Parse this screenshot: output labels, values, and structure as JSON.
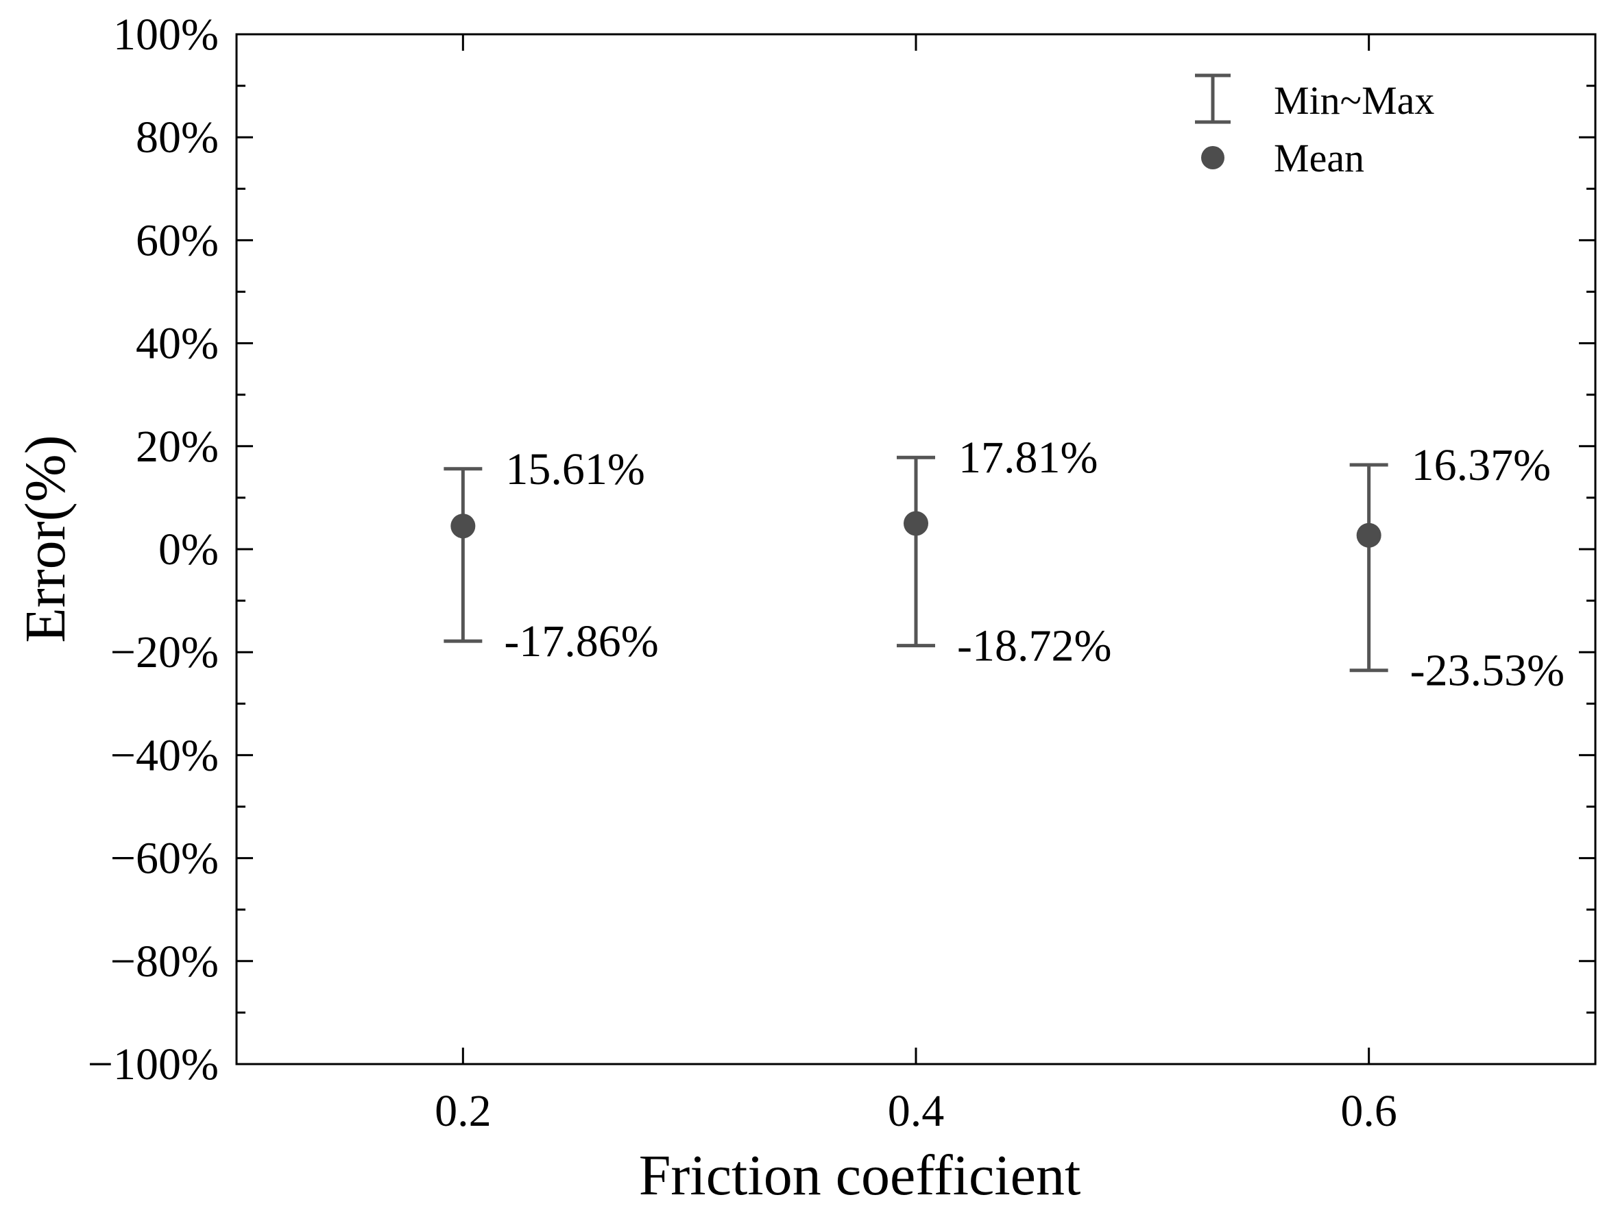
{
  "chart_data": {
    "type": "scatter",
    "title": "",
    "xlabel": "Friction coefficient",
    "ylabel": "Error(%)",
    "x": [
      0.2,
      0.4,
      0.6
    ],
    "x_tick_labels": [
      "0.2",
      "0.4",
      "0.6"
    ],
    "xlim": [
      0.1,
      0.7
    ],
    "ylim": [
      -100,
      100
    ],
    "y_ticks": [
      100,
      80,
      60,
      40,
      20,
      0,
      -20,
      -40,
      -60,
      -80,
      -100
    ],
    "y_tick_labels": [
      "100%",
      "80%",
      "60%",
      "40%",
      "20%",
      "0%",
      "−20%",
      "−40%",
      "−60%",
      "−80%",
      "−100%"
    ],
    "series": [
      {
        "name": "Mean",
        "values": [
          4.5,
          5.0,
          2.7
        ]
      },
      {
        "name": "Max",
        "values": [
          15.61,
          17.81,
          16.37
        ]
      },
      {
        "name": "Min",
        "values": [
          -17.86,
          -18.72,
          -23.53
        ]
      }
    ],
    "max_labels": [
      "15.61%",
      "17.81%",
      "16.37%"
    ],
    "min_labels": [
      "-17.86%",
      "-18.72%",
      "-23.53%"
    ],
    "legend": {
      "position": "top-right",
      "entries": [
        {
          "symbol": "errorbar",
          "label": "Min~Max"
        },
        {
          "symbol": "dot",
          "label": "Mean"
        }
      ]
    },
    "grid": false,
    "colors": {
      "marker": "#4d4d4d",
      "errorbar": "#555555",
      "axis": "#000000"
    }
  }
}
